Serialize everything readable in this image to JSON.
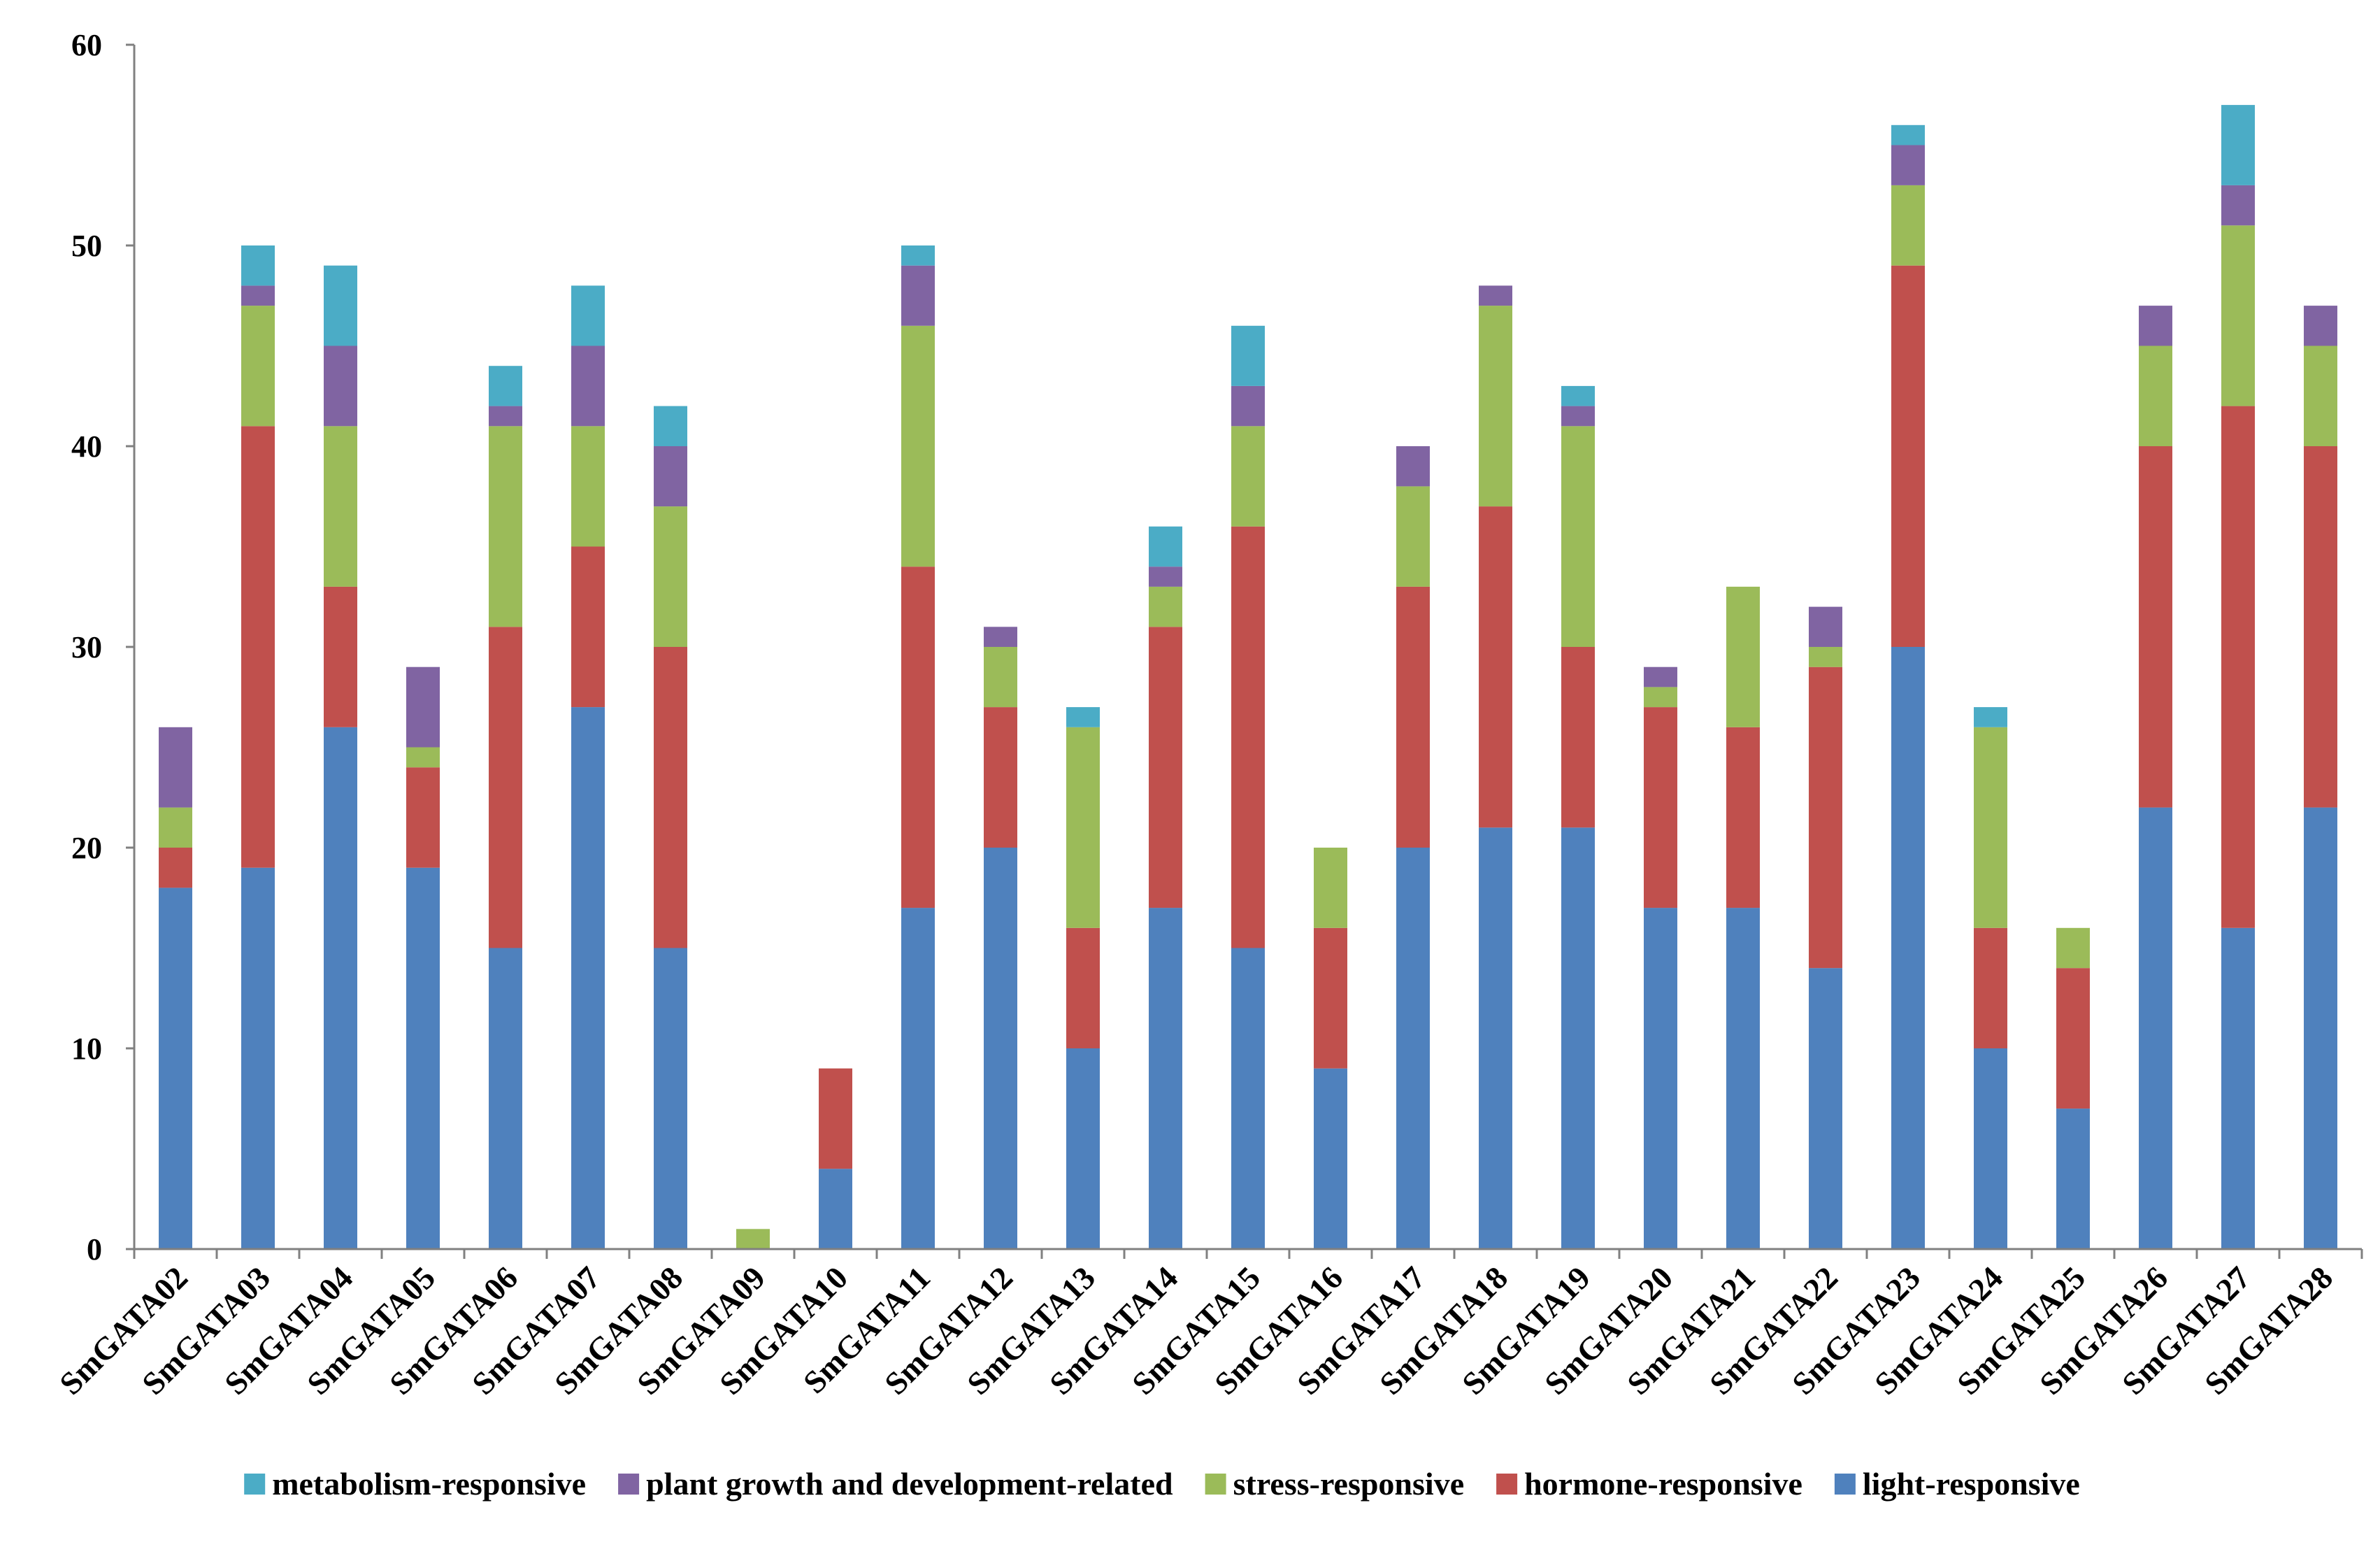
{
  "chart_data": {
    "type": "bar",
    "stacked": true,
    "title": "",
    "xlabel": "",
    "ylabel": "",
    "ylim": [
      0,
      60
    ],
    "y_ticks": [
      0,
      10,
      20,
      30,
      40,
      50,
      60
    ],
    "grid": false,
    "legend_position": "bottom",
    "categories": [
      "SmGATA02",
      "SmGATA03",
      "SmGATA04",
      "SmGATA05",
      "SmGATA06",
      "SmGATA07",
      "SmGATA08",
      "SmGATA09",
      "SmGATA10",
      "SmGATA11",
      "SmGATA12",
      "SmGATA13",
      "SmGATA14",
      "SmGATA15",
      "SmGATA16",
      "SmGATA17",
      "SmGATA18",
      "SmGATA19",
      "SmGATA20",
      "SmGATA21",
      "SmGATA22",
      "SmGATA23",
      "SmGATA24",
      "SmGATA25",
      "SmGATA26",
      "SmGATA27",
      "SmGATA28"
    ],
    "series": [
      {
        "name": "light-responsive",
        "color": "#4F81BD",
        "values": [
          18,
          19,
          26,
          19,
          15,
          27,
          15,
          0,
          4,
          17,
          20,
          10,
          17,
          15,
          9,
          20,
          21,
          21,
          17,
          17,
          14,
          30,
          10,
          7,
          22,
          16,
          22
        ]
      },
      {
        "name": "hormone-responsive",
        "color": "#C0504D",
        "values": [
          2,
          22,
          7,
          5,
          16,
          8,
          15,
          0,
          5,
          17,
          7,
          6,
          14,
          21,
          7,
          13,
          16,
          9,
          10,
          9,
          15,
          19,
          6,
          7,
          18,
          26,
          18
        ]
      },
      {
        "name": "stress-responsive",
        "color": "#9BBB59",
        "values": [
          2,
          6,
          8,
          1,
          10,
          6,
          7,
          1,
          0,
          12,
          3,
          10,
          2,
          5,
          4,
          5,
          10,
          11,
          1,
          7,
          1,
          4,
          10,
          2,
          5,
          9,
          5
        ]
      },
      {
        "name": "plant growth and development-related",
        "color": "#8064A2",
        "values": [
          4,
          1,
          4,
          4,
          1,
          4,
          3,
          0,
          0,
          3,
          1,
          0,
          1,
          2,
          0,
          2,
          1,
          1,
          1,
          0,
          2,
          2,
          0,
          0,
          2,
          2,
          2
        ]
      },
      {
        "name": "metabolism-responsive",
        "color": "#4BACC6",
        "values": [
          0,
          2,
          4,
          0,
          2,
          3,
          2,
          0,
          0,
          1,
          0,
          1,
          2,
          3,
          0,
          0,
          0,
          1,
          0,
          0,
          0,
          1,
          1,
          0,
          0,
          4,
          0
        ]
      }
    ],
    "legend_order": [
      "metabolism-responsive",
      "plant growth and development-related",
      "stress-responsive",
      "hormone-responsive",
      "light-responsive"
    ]
  }
}
